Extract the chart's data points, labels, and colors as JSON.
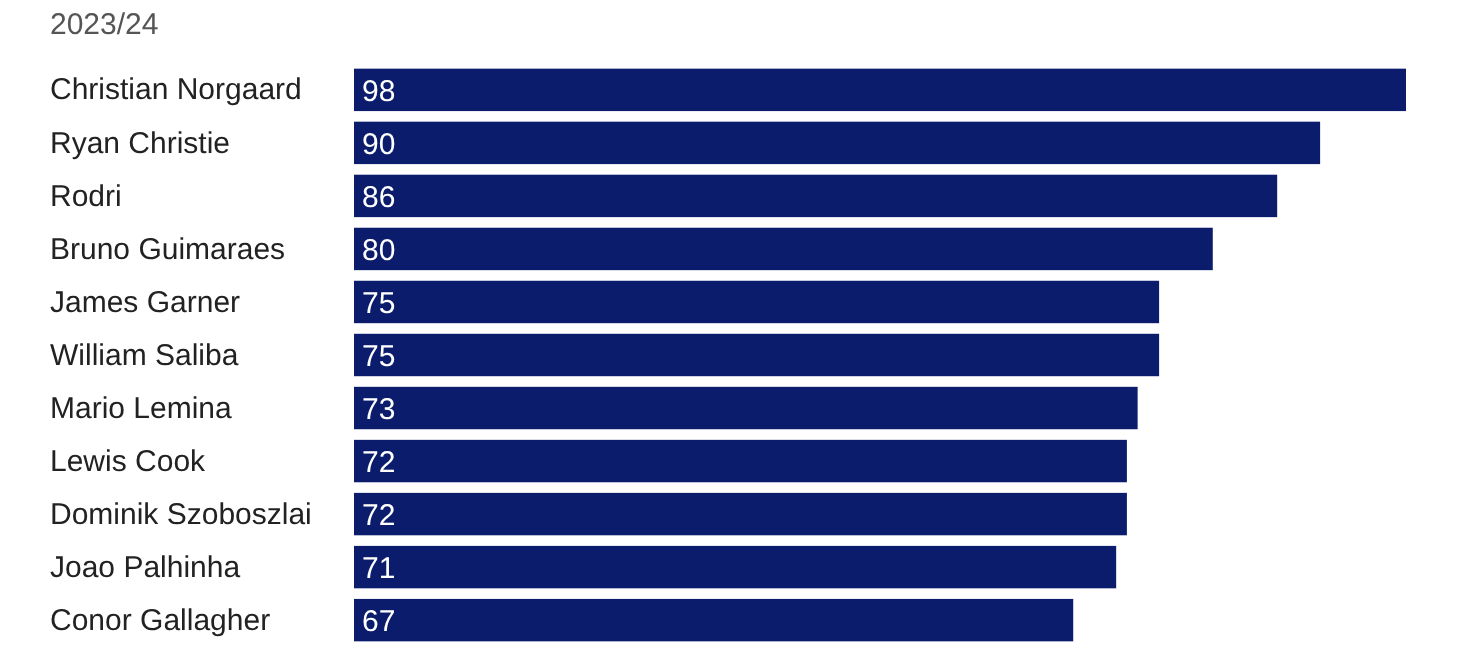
{
  "chart_data": {
    "type": "bar",
    "orientation": "horizontal",
    "title": "2023/24",
    "categories": [
      "Christian Norgaard",
      "Ryan Christie",
      "Rodri",
      "Bruno Guimaraes",
      "James Garner",
      "William Saliba",
      "Mario Lemina",
      "Lewis Cook",
      "Dominik Szoboszlai",
      "Joao Palhinha",
      "Conor Gallagher"
    ],
    "values": [
      98,
      90,
      86,
      80,
      75,
      75,
      73,
      72,
      72,
      71,
      67
    ],
    "color": "#0c1c6c",
    "data_labels": true
  }
}
